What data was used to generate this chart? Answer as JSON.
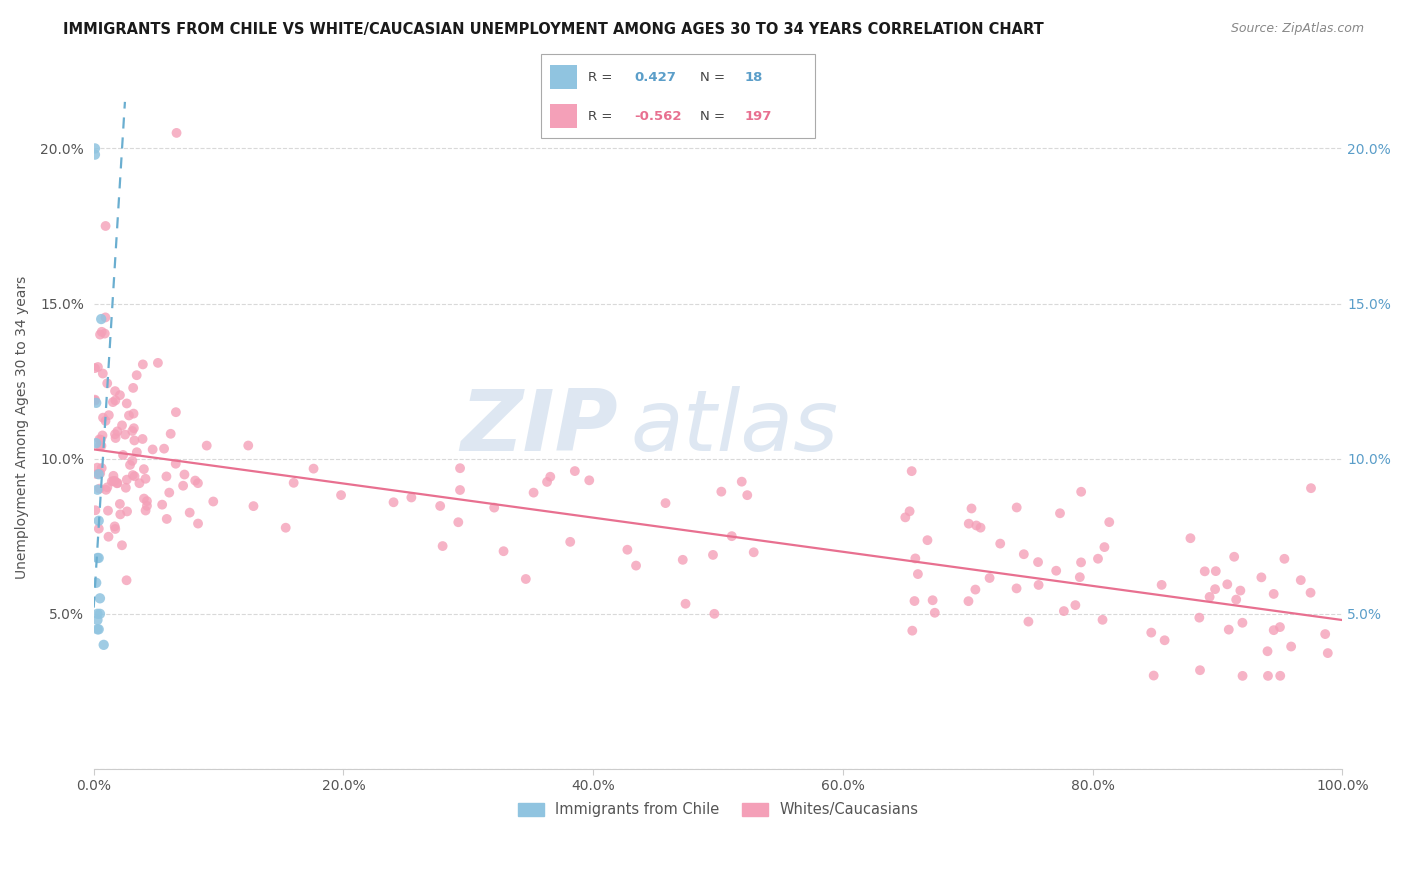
{
  "title": "IMMIGRANTS FROM CHILE VS WHITE/CAUCASIAN UNEMPLOYMENT AMONG AGES 30 TO 34 YEARS CORRELATION CHART",
  "source": "Source: ZipAtlas.com",
  "ylabel": "Unemployment Among Ages 30 to 34 years",
  "xlim": [
    0,
    1.0
  ],
  "ylim": [
    0,
    0.22
  ],
  "xticks": [
    0.0,
    0.2,
    0.4,
    0.6,
    0.8,
    1.0
  ],
  "xtick_labels": [
    "0.0%",
    "20.0%",
    "40.0%",
    "60.0%",
    "80.0%",
    "100.0%"
  ],
  "yticks_left": [
    0.0,
    0.05,
    0.1,
    0.15,
    0.2
  ],
  "ytick_labels_left": [
    "",
    "5.0%",
    "10.0%",
    "15.0%",
    "20.0%"
  ],
  "yticks_right": [
    0.05,
    0.1,
    0.15,
    0.2
  ],
  "ytick_labels_right": [
    "5.0%",
    "10.0%",
    "15.0%",
    "20.0%"
  ],
  "legend_blue_r": "0.427",
  "legend_blue_n": "18",
  "legend_pink_r": "-0.562",
  "legend_pink_n": "197",
  "blue_color": "#90C4E0",
  "pink_color": "#F4A0B8",
  "blue_line_color": "#6AAED0",
  "pink_line_color": "#E87090",
  "watermark_zip": "ZIP",
  "watermark_atlas": "atlas",
  "watermark_color_zip": "#C5D5E5",
  "watermark_color_atlas": "#C5D5E5",
  "blue_x": [
    0.001,
    0.001,
    0.002,
    0.002,
    0.002,
    0.003,
    0.003,
    0.003,
    0.003,
    0.003,
    0.004,
    0.004,
    0.004,
    0.004,
    0.005,
    0.005,
    0.006,
    0.008
  ],
  "blue_y": [
    0.198,
    0.2,
    0.105,
    0.118,
    0.06,
    0.05,
    0.048,
    0.045,
    0.068,
    0.09,
    0.08,
    0.095,
    0.045,
    0.068,
    0.055,
    0.05,
    0.145,
    0.04
  ],
  "pink_trend_start_y": 0.103,
  "pink_trend_end_y": 0.048,
  "blue_trend_x0": 0.0,
  "blue_trend_y0": 0.052,
  "blue_trend_x1": 0.025,
  "blue_trend_y1": 0.215
}
